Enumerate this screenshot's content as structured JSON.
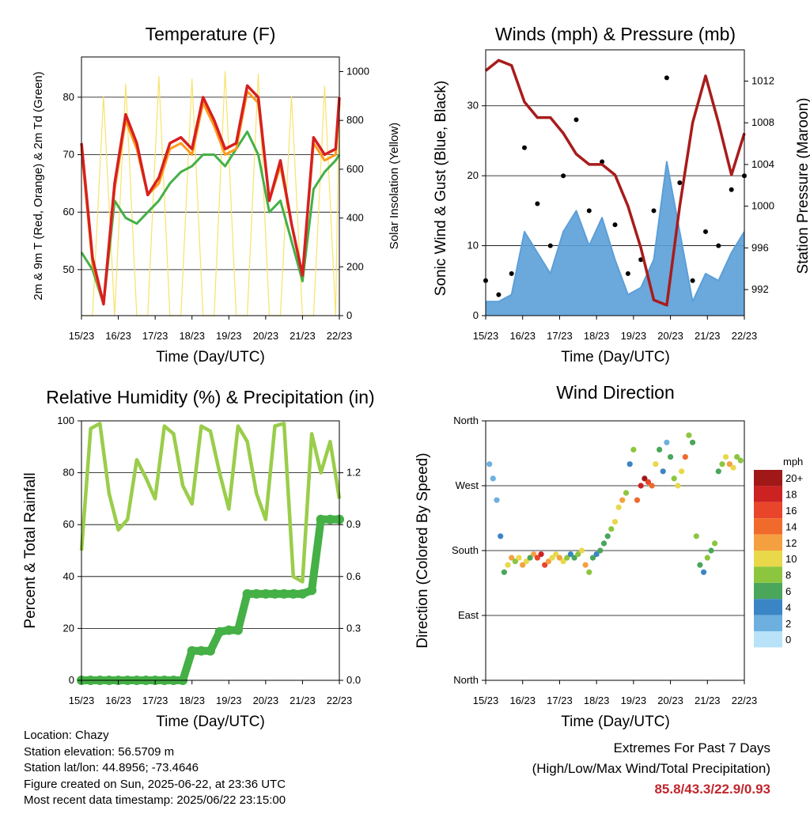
{
  "x_tick_labels": [
    "15/23",
    "16/23",
    "17/23",
    "18/23",
    "19/23",
    "20/23",
    "21/23",
    "22/23"
  ],
  "colors": {
    "temp2m": "#d62020",
    "temp9m": "#ff9a1a",
    "dewpoint": "#44b046",
    "solar": "#f7e36a",
    "wind": "#5b9fd8",
    "gust": "#000000",
    "pressure": "#a81c1c",
    "rh": "#9acd4a",
    "precip": "#44b046"
  },
  "panels": {
    "temperature": {
      "title": "Temperature (F)",
      "xlabel": "Time (Day/UTC)",
      "ylabel_left": "2m & 9m T (Red, Orange) & 2m Td (Green)",
      "ylabel_right": "Solar Insolation (Yellow)",
      "yticks_left": [
        "50",
        "60",
        "70",
        "80"
      ],
      "yticks_right": [
        "0",
        "200",
        "400",
        "600",
        "800",
        "1000"
      ]
    },
    "winds": {
      "title": "Winds (mph) & Pressure (mb)",
      "xlabel": "Time (Day/UTC)",
      "ylabel_left": "Sonic Wind & Gust (Blue, Black)",
      "ylabel_right": "Station Pressure (Maroon)",
      "yticks_left": [
        "0",
        "10",
        "20",
        "30"
      ],
      "yticks_right": [
        "992",
        "996",
        "1000",
        "1004",
        "1008",
        "1012"
      ]
    },
    "humidity": {
      "title": "Relative Humidity (%) & Precipitation (in)",
      "xlabel": "Time (Day/UTC)",
      "ylabel_left": "Percent & Total Rainfall",
      "yticks_left": [
        "0",
        "20",
        "40",
        "60",
        "80",
        "100"
      ],
      "yticks_right": [
        "0.0",
        "0.3",
        "0.6",
        "0.9",
        "1.2"
      ]
    },
    "direction": {
      "title": "Wind Direction",
      "xlabel": "Time (Day/UTC)",
      "ylabel_left": "Direction (Colored By Speed)",
      "yticks_left": [
        "North",
        "East",
        "South",
        "West",
        "North"
      ],
      "legend_title": "mph",
      "legend_labels": [
        "20+",
        "18",
        "16",
        "14",
        "12",
        "10",
        "8",
        "6",
        "4",
        "2",
        "0"
      ],
      "legend_colors": [
        "#a01818",
        "#cc2222",
        "#e8452a",
        "#f06a2c",
        "#f5a040",
        "#e8d84a",
        "#8cc63f",
        "#4aa65a",
        "#3a85c5",
        "#6db0e0",
        "#b8e2f8"
      ]
    }
  },
  "chart_data": [
    {
      "type": "line",
      "title": "Temperature (F)",
      "xlabel": "Time (Day/UTC)",
      "x_ticks": [
        "15/23",
        "16/23",
        "17/23",
        "18/23",
        "19/23",
        "20/23",
        "21/23",
        "22/23"
      ],
      "x": [
        0,
        0.3,
        0.6,
        0.9,
        1.2,
        1.5,
        1.8,
        2.1,
        2.4,
        2.7,
        3.0,
        3.3,
        3.6,
        3.9,
        4.2,
        4.5,
        4.8,
        5.1,
        5.4,
        5.7,
        6.0,
        6.3,
        6.6,
        6.9,
        7.0
      ],
      "ylim_left": [
        42,
        87
      ],
      "ylim_right": [
        0,
        1060
      ],
      "series": [
        {
          "name": "2m T",
          "axis": "left",
          "values": [
            72,
            52,
            44,
            65,
            77,
            72,
            63,
            66,
            72,
            73,
            71,
            80,
            76,
            71,
            72,
            82,
            80,
            62,
            69,
            58,
            49,
            73,
            70,
            71,
            80
          ]
        },
        {
          "name": "9m T",
          "axis": "left",
          "values": [
            71,
            51,
            44,
            64,
            76,
            71,
            63,
            65,
            71,
            72,
            70,
            79,
            75,
            70,
            71,
            81,
            79,
            62,
            68,
            58,
            49,
            72,
            69,
            70,
            79
          ]
        },
        {
          "name": "2m Td",
          "axis": "left",
          "values": [
            53,
            50,
            44,
            62,
            59,
            58,
            60,
            62,
            65,
            67,
            68,
            70,
            70,
            68,
            71,
            74,
            70,
            60,
            62,
            55,
            48,
            64,
            67,
            69,
            70
          ]
        },
        {
          "name": "Solar Insolation",
          "axis": "right",
          "values": [
            0,
            0,
            900,
            0,
            950,
            0,
            0,
            980,
            0,
            0,
            970,
            0,
            0,
            1000,
            0,
            0,
            990,
            0,
            0,
            900,
            0,
            0,
            940,
            0,
            920
          ]
        }
      ]
    },
    {
      "type": "line",
      "title": "Winds (mph) & Pressure (mb)",
      "xlabel": "Time (Day/UTC)",
      "x_ticks": [
        "15/23",
        "16/23",
        "17/23",
        "18/23",
        "19/23",
        "20/23",
        "21/23",
        "22/23"
      ],
      "x": [
        0,
        0.35,
        0.7,
        1.05,
        1.4,
        1.75,
        2.1,
        2.45,
        2.8,
        3.15,
        3.5,
        3.85,
        4.2,
        4.55,
        4.9,
        5.25,
        5.6,
        5.95,
        6.3,
        6.65,
        7.0
      ],
      "ylim_left": [
        0,
        38
      ],
      "ylim_right": [
        989.5,
        1015
      ],
      "series": [
        {
          "name": "Sonic Wind",
          "axis": "left",
          "values": [
            2,
            2,
            3,
            12,
            9,
            6,
            12,
            15,
            10,
            14,
            8,
            3,
            4,
            8,
            22,
            12,
            2,
            6,
            5,
            9,
            12
          ]
        },
        {
          "name": "Gust",
          "axis": "left",
          "values": [
            5,
            3,
            6,
            24,
            16,
            10,
            20,
            28,
            15,
            22,
            13,
            6,
            8,
            15,
            34,
            19,
            5,
            12,
            10,
            18,
            20
          ]
        },
        {
          "name": "Station Pressure",
          "axis": "right",
          "values": [
            1013,
            1014,
            1013.5,
            1010,
            1008.5,
            1008.5,
            1007,
            1005,
            1004,
            1004,
            1003,
            1000,
            996,
            991,
            990.5,
            1000,
            1008,
            1012.5,
            1008,
            1003,
            1007
          ]
        }
      ]
    },
    {
      "type": "line",
      "title": "Relative Humidity (%) & Precipitation (in)",
      "xlabel": "Time (Day/UTC)",
      "x_ticks": [
        "15/23",
        "16/23",
        "17/23",
        "18/23",
        "19/23",
        "20/23",
        "21/23",
        "22/23"
      ],
      "x": [
        0,
        0.25,
        0.5,
        0.75,
        1.0,
        1.25,
        1.5,
        1.75,
        2.0,
        2.25,
        2.5,
        2.75,
        3.0,
        3.25,
        3.5,
        3.75,
        4.0,
        4.25,
        4.5,
        4.75,
        5.0,
        5.25,
        5.5,
        5.75,
        6.0,
        6.25,
        6.5,
        6.75,
        7.0
      ],
      "ylim_left": [
        0,
        100
      ],
      "ylim_right": [
        0,
        1.5
      ],
      "series": [
        {
          "name": "Relative Humidity",
          "axis": "left",
          "values": [
            50,
            97,
            99,
            72,
            58,
            62,
            85,
            78,
            70,
            98,
            95,
            75,
            68,
            98,
            96,
            80,
            66,
            98,
            92,
            72,
            62,
            98,
            99,
            40,
            38,
            95,
            80,
            92,
            70
          ]
        },
        {
          "name": "Total Precipitation",
          "axis": "right",
          "values": [
            0,
            0,
            0,
            0,
            0,
            0,
            0,
            0,
            0,
            0,
            0,
            0,
            0.17,
            0.17,
            0.17,
            0.28,
            0.29,
            0.29,
            0.5,
            0.5,
            0.5,
            0.5,
            0.5,
            0.5,
            0.5,
            0.52,
            0.93,
            0.93,
            0.93
          ]
        }
      ]
    },
    {
      "type": "scatter",
      "title": "Wind Direction",
      "xlabel": "Time (Day/UTC)",
      "x_ticks": [
        "15/23",
        "16/23",
        "17/23",
        "18/23",
        "19/23",
        "20/23",
        "21/23",
        "22/23"
      ],
      "ylim": [
        0,
        360
      ],
      "y_ticks": [
        "North",
        "East",
        "South",
        "West",
        "North"
      ],
      "points_x": [
        0.1,
        0.2,
        0.3,
        0.4,
        0.5,
        0.6,
        0.7,
        0.8,
        0.9,
        1.0,
        1.1,
        1.2,
        1.3,
        1.4,
        1.5,
        1.6,
        1.7,
        1.8,
        1.9,
        2.0,
        2.1,
        2.2,
        2.3,
        2.4,
        2.5,
        2.6,
        2.7,
        2.8,
        2.9,
        3.0,
        3.1,
        3.2,
        3.3,
        3.4,
        3.5,
        3.6,
        3.7,
        3.8,
        3.9,
        4.0,
        4.1,
        4.2,
        4.3,
        4.4,
        4.5,
        4.6,
        4.7,
        4.8,
        4.9,
        5.0,
        5.1,
        5.2,
        5.3,
        5.4,
        5.5,
        5.6,
        5.7,
        5.8,
        5.9,
        6.0,
        6.1,
        6.2,
        6.3,
        6.4,
        6.5,
        6.6,
        6.7,
        6.8,
        6.9
      ],
      "points_dir": [
        300,
        280,
        250,
        200,
        150,
        160,
        170,
        165,
        170,
        160,
        165,
        170,
        175,
        170,
        175,
        160,
        165,
        170,
        175,
        170,
        165,
        170,
        175,
        170,
        175,
        180,
        160,
        150,
        170,
        175,
        180,
        190,
        200,
        210,
        220,
        240,
        250,
        260,
        300,
        320,
        250,
        270,
        280,
        275,
        270,
        300,
        320,
        290,
        330,
        310,
        280,
        270,
        290,
        310,
        340,
        330,
        200,
        160,
        150,
        170,
        180,
        190,
        290,
        300,
        310,
        300,
        295,
        310,
        305
      ],
      "points_speed": [
        2,
        1,
        2,
        3,
        6,
        9,
        12,
        8,
        10,
        12,
        9,
        6,
        12,
        15,
        18,
        16,
        12,
        10,
        9,
        12,
        10,
        8,
        4,
        6,
        8,
        10,
        12,
        8,
        6,
        4,
        5,
        6,
        6,
        8,
        9,
        10,
        12,
        8,
        4,
        8,
        14,
        18,
        20,
        16,
        14,
        10,
        6,
        4,
        2,
        6,
        8,
        10,
        10,
        14,
        8,
        6,
        8,
        6,
        4,
        8,
        6,
        8,
        6,
        8,
        10,
        12,
        10,
        8,
        8
      ]
    }
  ],
  "info": {
    "location": "Location: Chazy",
    "elevation": "Station elevation: 56.5709 m",
    "latlon": "Station lat/lon: 44.8956; -73.4646",
    "created": "Figure created on Sun, 2025-06-22, at 23:36 UTC",
    "latest": "Most recent data timestamp: 2025/06/22 23:15:00"
  },
  "extremes": {
    "line1": "Extremes For Past 7 Days",
    "line2": "(High/Low/Max Wind/Total Precipitation)",
    "values": "85.8/43.3/22.9/0.93"
  }
}
